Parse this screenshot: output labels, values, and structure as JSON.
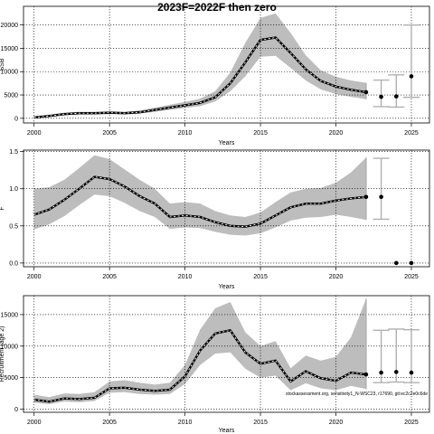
{
  "title": "2023F=2022F then zero",
  "footnote": "stockassessment.org, sensitivity1_N-WSC23, r17690, git:ec2c2e0c6de",
  "colors": {
    "band": "#bdbdbd",
    "line": "#000000",
    "grid": "#000000",
    "errorbar": "#b0b0b0",
    "point": "#000000"
  },
  "chart_data": [
    {
      "type": "line",
      "panel": "top",
      "title": "2023F=2022F then zero",
      "xlabel": "Years",
      "ylabel": "SSB",
      "xlim": [
        1999.3,
        2026.2
      ],
      "ylim": [
        -1000,
        24000
      ],
      "xticks": [
        2000,
        2005,
        2010,
        2015,
        2020,
        2025
      ],
      "yticks": [
        0,
        5000,
        10000,
        15000,
        20000
      ],
      "ytick_labels": [
        "0",
        "5000",
        "10000",
        "15000",
        "20000"
      ],
      "grid": true,
      "x": [
        2000,
        2001,
        2002,
        2003,
        2004,
        2005,
        2006,
        2007,
        2008,
        2009,
        2010,
        2011,
        2012,
        2013,
        2014,
        2015,
        2016,
        2017,
        2018,
        2019,
        2020,
        2021,
        2022
      ],
      "series": [
        {
          "values": [
            200,
            500,
            900,
            1100,
            1100,
            1200,
            1100,
            1300,
            1800,
            2300,
            2800,
            3300,
            4500,
            7500,
            12000,
            16800,
            17300,
            14000,
            10500,
            8000,
            6800,
            6100,
            5600
          ],
          "lower": [
            100,
            300,
            600,
            800,
            800,
            900,
            800,
            1000,
            1400,
            1800,
            2200,
            2600,
            3600,
            5800,
            9000,
            13200,
            13400,
            10800,
            8100,
            6200,
            5200,
            4600,
            4100
          ],
          "upper": [
            400,
            800,
            1200,
            1400,
            1400,
            1500,
            1400,
            1700,
            2300,
            2900,
            3500,
            4200,
            5800,
            9800,
            16200,
            21500,
            22500,
            18300,
            13500,
            10300,
            8900,
            8100,
            7600
          ]
        }
      ],
      "projections": [
        {
          "x": 2023,
          "value": 4600,
          "lower": 2500,
          "upper": 8200
        },
        {
          "x": 2024,
          "value": 4700,
          "lower": 2400,
          "upper": 9300
        },
        {
          "x": 2025,
          "value": 9000,
          "lower": 4500,
          "upper": 20000
        }
      ]
    },
    {
      "type": "line",
      "panel": "middle",
      "xlabel": "Years",
      "ylabel": "F",
      "xlim": [
        1999.3,
        2026.2
      ],
      "ylim": [
        -0.05,
        1.52
      ],
      "xticks": [
        2000,
        2005,
        2010,
        2015,
        2020,
        2025
      ],
      "yticks": [
        0,
        0.5,
        1,
        1.5
      ],
      "ytick_labels": [
        "0.0",
        "0.5",
        "1.0",
        "1.5"
      ],
      "grid": true,
      "x": [
        2000,
        2001,
        2002,
        2003,
        2004,
        2005,
        2006,
        2007,
        2008,
        2009,
        2010,
        2011,
        2012,
        2013,
        2014,
        2015,
        2016,
        2017,
        2018,
        2019,
        2020,
        2021,
        2022
      ],
      "series": [
        {
          "values": [
            0.65,
            0.72,
            0.85,
            1.0,
            1.16,
            1.13,
            1.03,
            0.9,
            0.8,
            0.62,
            0.64,
            0.62,
            0.55,
            0.5,
            0.49,
            0.53,
            0.64,
            0.75,
            0.8,
            0.8,
            0.84,
            0.87,
            0.89
          ],
          "lower": [
            0.45,
            0.52,
            0.63,
            0.78,
            0.92,
            0.9,
            0.81,
            0.7,
            0.62,
            0.46,
            0.48,
            0.47,
            0.42,
            0.38,
            0.37,
            0.4,
            0.48,
            0.57,
            0.61,
            0.62,
            0.65,
            0.62,
            0.58
          ],
          "upper": [
            1.0,
            1.02,
            1.12,
            1.28,
            1.45,
            1.4,
            1.26,
            1.12,
            1.0,
            0.8,
            0.82,
            0.8,
            0.7,
            0.64,
            0.62,
            0.68,
            0.82,
            0.95,
            1.0,
            1.01,
            1.08,
            1.22,
            1.42
          ]
        }
      ],
      "projections": [
        {
          "x": 2023,
          "value": 0.89,
          "lower": 0.59,
          "upper": 1.41
        },
        {
          "x": 2024,
          "value": 0.0,
          "lower": 0.0,
          "upper": 0.0
        },
        {
          "x": 2025,
          "value": 0.0,
          "lower": 0.0,
          "upper": 0.0
        }
      ]
    },
    {
      "type": "line",
      "panel": "bottom",
      "xlabel": "Years",
      "ylabel": "Recruitment (age 2)",
      "xlim": [
        1999.3,
        2026.2
      ],
      "ylim": [
        -500,
        18000
      ],
      "xticks": [
        2000,
        2005,
        2010,
        2015,
        2020,
        2025
      ],
      "yticks": [
        0,
        5000,
        10000,
        15000
      ],
      "ytick_labels": [
        "0",
        "5000",
        "10000",
        "15000"
      ],
      "grid": true,
      "x": [
        2000,
        2001,
        2002,
        2003,
        2004,
        2005,
        2006,
        2007,
        2008,
        2009,
        2010,
        2011,
        2012,
        2013,
        2014,
        2015,
        2016,
        2017,
        2018,
        2019,
        2020,
        2021,
        2022
      ],
      "series": [
        {
          "values": [
            1500,
            1200,
            1700,
            1600,
            1800,
            3300,
            3400,
            3100,
            2900,
            3100,
            5200,
            9300,
            12000,
            12500,
            9000,
            7200,
            7700,
            4400,
            6000,
            4900,
            4500,
            5800,
            5500
          ],
          "lower": [
            1000,
            800,
            1200,
            1100,
            1300,
            2600,
            2700,
            2400,
            2300,
            2400,
            4000,
            7000,
            8800,
            9000,
            6400,
            5000,
            5300,
            3000,
            4100,
            3300,
            3000,
            3700,
            3200
          ],
          "upper": [
            2300,
            1900,
            2500,
            2400,
            2700,
            4400,
            4600,
            4200,
            3900,
            4200,
            7000,
            12600,
            16000,
            17000,
            12200,
            10000,
            10800,
            6500,
            8500,
            7700,
            8300,
            11400,
            17500
          ]
        }
      ],
      "projections": [
        {
          "x": 2023,
          "value": 5800,
          "lower": 4200,
          "upper": 12500
        },
        {
          "x": 2024,
          "value": 5900,
          "lower": 4300,
          "upper": 12700
        },
        {
          "x": 2025,
          "value": 5800,
          "lower": 4200,
          "upper": 12600
        }
      ]
    }
  ]
}
